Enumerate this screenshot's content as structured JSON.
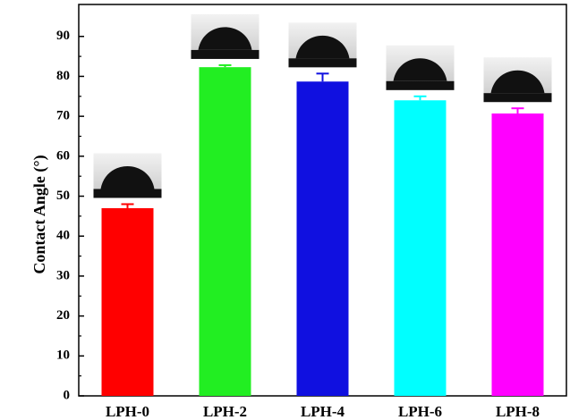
{
  "chart_data": {
    "type": "bar",
    "y_label": "Contact Angle (°)",
    "categories": [
      "LPH-0",
      "LPH-2",
      "LPH-4",
      "LPH-6",
      "LPH-8"
    ],
    "values": [
      47,
      82.3,
      78.7,
      74,
      70.7
    ],
    "errors": [
      1,
      0.5,
      2,
      1,
      1.3
    ],
    "colors": [
      "#ff0000",
      "#22ee22",
      "#1010e0",
      "#00ffff",
      "#ff00ff"
    ],
    "ylim": [
      0,
      98
    ],
    "yticks": [
      0,
      10,
      20,
      30,
      40,
      50,
      60,
      70,
      80,
      90
    ],
    "grid": false
  }
}
